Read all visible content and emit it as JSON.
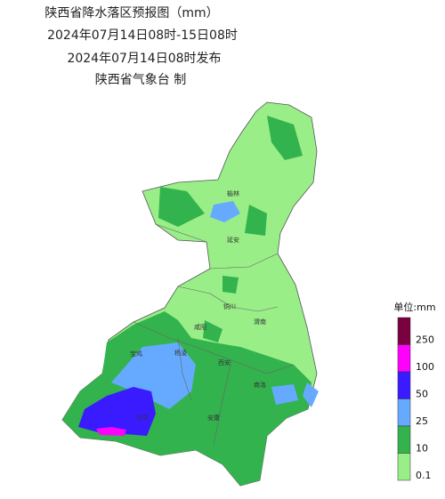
{
  "header": {
    "title": "陕西省降水落区预报图（mm）",
    "period": "2024年07月14日08时-15日08时",
    "issued": "2024年07月14日08时发布",
    "agency": "陕西省气象台 制"
  },
  "cities": [
    {
      "name": "榆林"
    },
    {
      "name": "延安"
    },
    {
      "name": "铜川"
    },
    {
      "name": "渭南"
    },
    {
      "name": "咸阳"
    },
    {
      "name": "宝鸡"
    },
    {
      "name": "西安"
    },
    {
      "name": "杨凌"
    },
    {
      "name": "汉中"
    },
    {
      "name": "商洛"
    },
    {
      "name": "安康"
    }
  ],
  "legend": {
    "unit": "单位:mm",
    "levels": [
      {
        "label": "250",
        "color": "#7a0040"
      },
      {
        "label": "100",
        "color": "#ff00ff"
      },
      {
        "label": "50",
        "color": "#3a1aff"
      },
      {
        "label": "25",
        "color": "#66aaff"
      },
      {
        "label": "10",
        "color": "#33b34d"
      },
      {
        "label": "0.1",
        "color": "#99ee88"
      }
    ]
  }
}
